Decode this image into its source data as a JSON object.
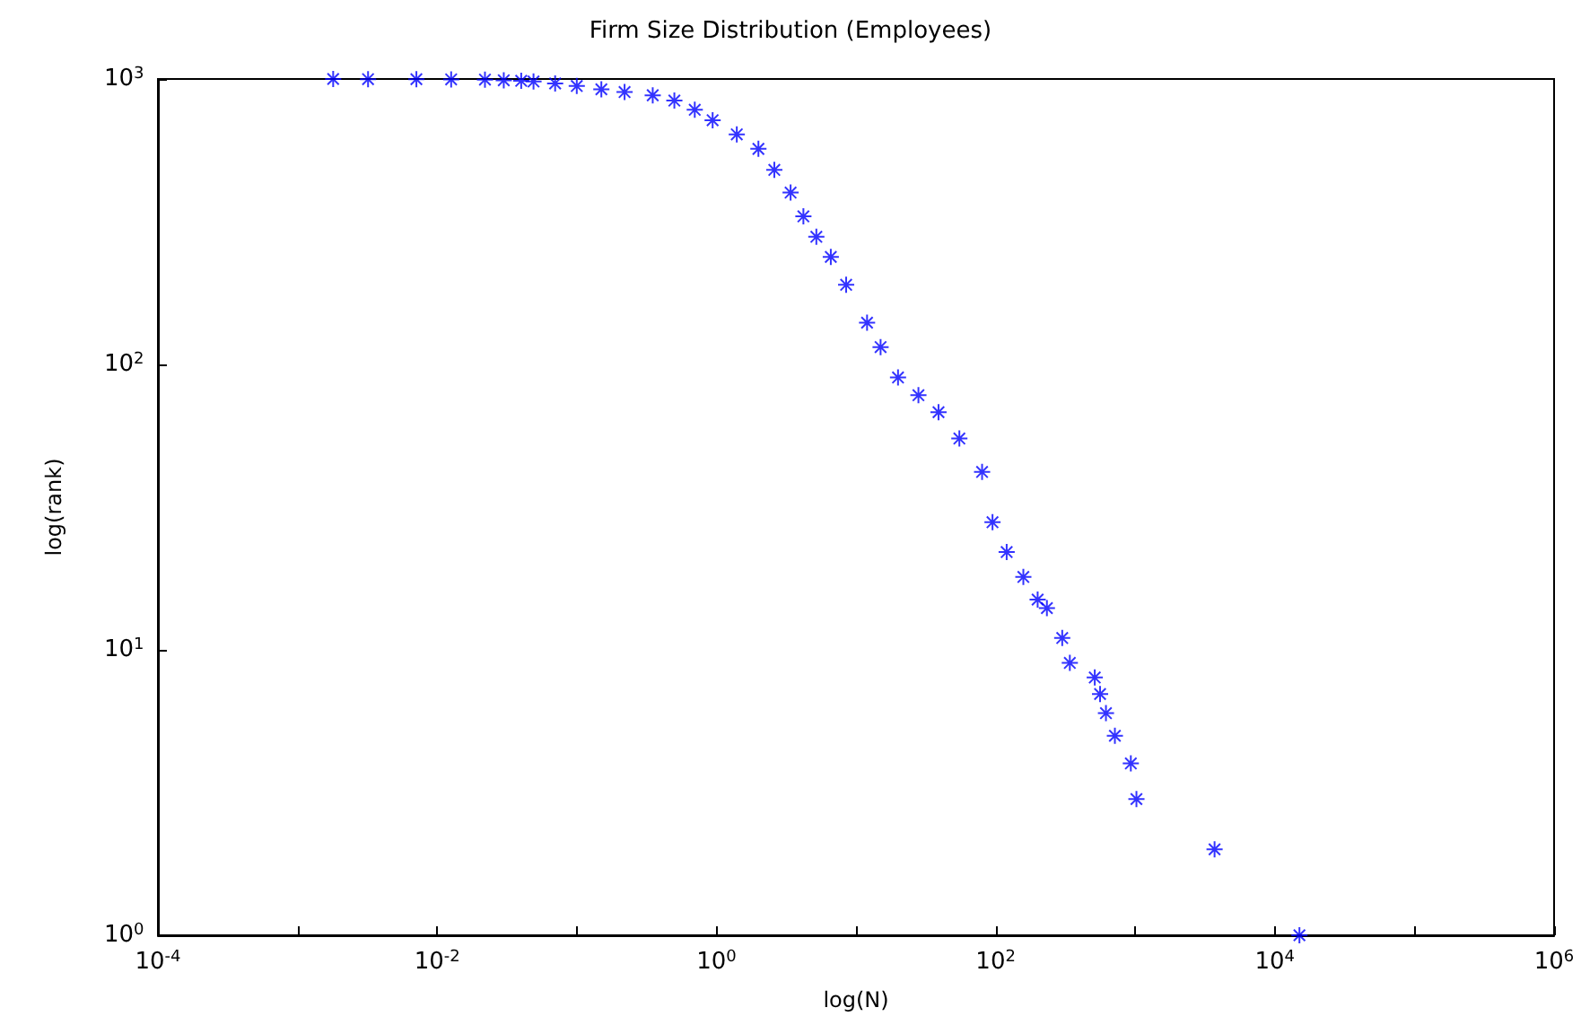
{
  "chart_data": {
    "type": "scatter",
    "title": "Firm Size Distribution (Employees)",
    "xlabel": "log(N)",
    "ylabel": "log(rank)",
    "log": "xy",
    "marker": "cross",
    "grid": false,
    "xlim": [
      0.0001,
      1000000
    ],
    "ylim": [
      1,
      1000
    ],
    "xticks": [
      {
        "value": 0.0001,
        "label": "10$^{-4}$"
      },
      {
        "value": 0.001,
        "label": null
      },
      {
        "value": 0.01,
        "label": "10$^{-2}$"
      },
      {
        "value": 0.1,
        "label": null
      },
      {
        "value": 1,
        "label": "10$^{0}$"
      },
      {
        "value": 10,
        "label": null
      },
      {
        "value": 100,
        "label": "10$^{2}$"
      },
      {
        "value": 1000,
        "label": null
      },
      {
        "value": 10000,
        "label": "10$^{4}$"
      },
      {
        "value": 100000,
        "label": null
      },
      {
        "value": 1000000,
        "label": "10$^{6}$"
      }
    ],
    "yticks": [
      {
        "value": 1,
        "label": "10$^{0}$"
      },
      {
        "value": 10,
        "label": "10$^{1}$"
      },
      {
        "value": 100,
        "label": "10$^{2}$"
      },
      {
        "value": 1000,
        "label": "10$^{3}$"
      }
    ],
    "series": [
      {
        "color": "#0000ff",
        "x": [
          0.0018,
          0.0032,
          0.0071,
          0.0126,
          0.022,
          0.03,
          0.04,
          0.049,
          0.07,
          0.1,
          0.15,
          0.22,
          0.35,
          0.5,
          0.7,
          0.94,
          1.4,
          2.0,
          2.6,
          3.4,
          4.2,
          5.2,
          6.6,
          8.5,
          12,
          15,
          20,
          28,
          39,
          55,
          80,
          95,
          120,
          158,
          200,
          233,
          300,
          340,
          513,
          560,
          617,
          715,
          930,
          1020,
          3700,
          15000
        ],
        "values": [
          1000,
          999,
          998,
          997,
          995,
          990,
          985,
          980,
          965,
          945,
          920,
          900,
          877,
          840,
          780,
          717,
          640,
          569,
          480,
          400,
          330,
          280,
          238,
          190,
          140,
          115,
          90,
          78,
          68,
          55,
          42,
          28,
          22,
          18,
          15,
          14,
          11,
          9,
          8,
          7,
          6,
          5,
          4,
          3,
          2,
          1
        ]
      }
    ]
  }
}
